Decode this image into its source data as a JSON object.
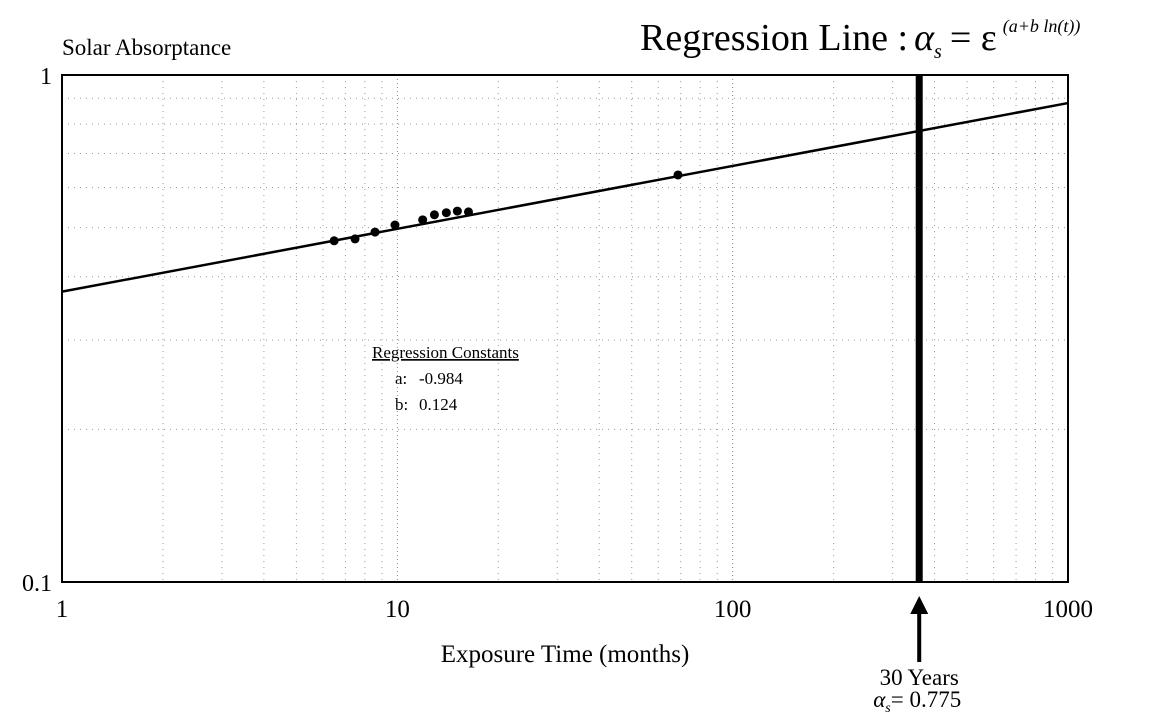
{
  "chart_data": {
    "type": "scatter",
    "title": {
      "text": "Regression Line :",
      "lhs": "α",
      "lhs_sub": "s",
      "eq": "= ε",
      "exponent": "(a+b ln(t))"
    },
    "x_label": "Exposure Time (months)",
    "y_label": "Solar Absorptance",
    "log_x": true,
    "log_y": true,
    "grid": true,
    "xlim": [
      1,
      1000
    ],
    "ylim": [
      0.1,
      1
    ],
    "xticks": [
      1,
      10,
      100,
      1000
    ],
    "yticks": [
      0.1,
      1
    ],
    "series": [
      {
        "name": null,
        "color": "#000000",
        "x": [
          6.48,
          7.48,
          8.58,
          9.84,
          11.9,
          12.9,
          14.0,
          15.1,
          16.3,
          68.7
        ],
        "values": [
          0.471,
          0.475,
          0.49,
          0.506,
          0.518,
          0.53,
          0.535,
          0.539,
          0.537,
          0.635
        ]
      }
    ],
    "regression": {
      "heading": "Regression Constants",
      "a_label": "a:",
      "a": -0.984,
      "b_label": "b:",
      "b": 0.124
    },
    "marker": {
      "x": 360,
      "label": "30 Years",
      "symbol": "α",
      "symbol_sub": "s",
      "value_text": "= 0.775"
    }
  }
}
